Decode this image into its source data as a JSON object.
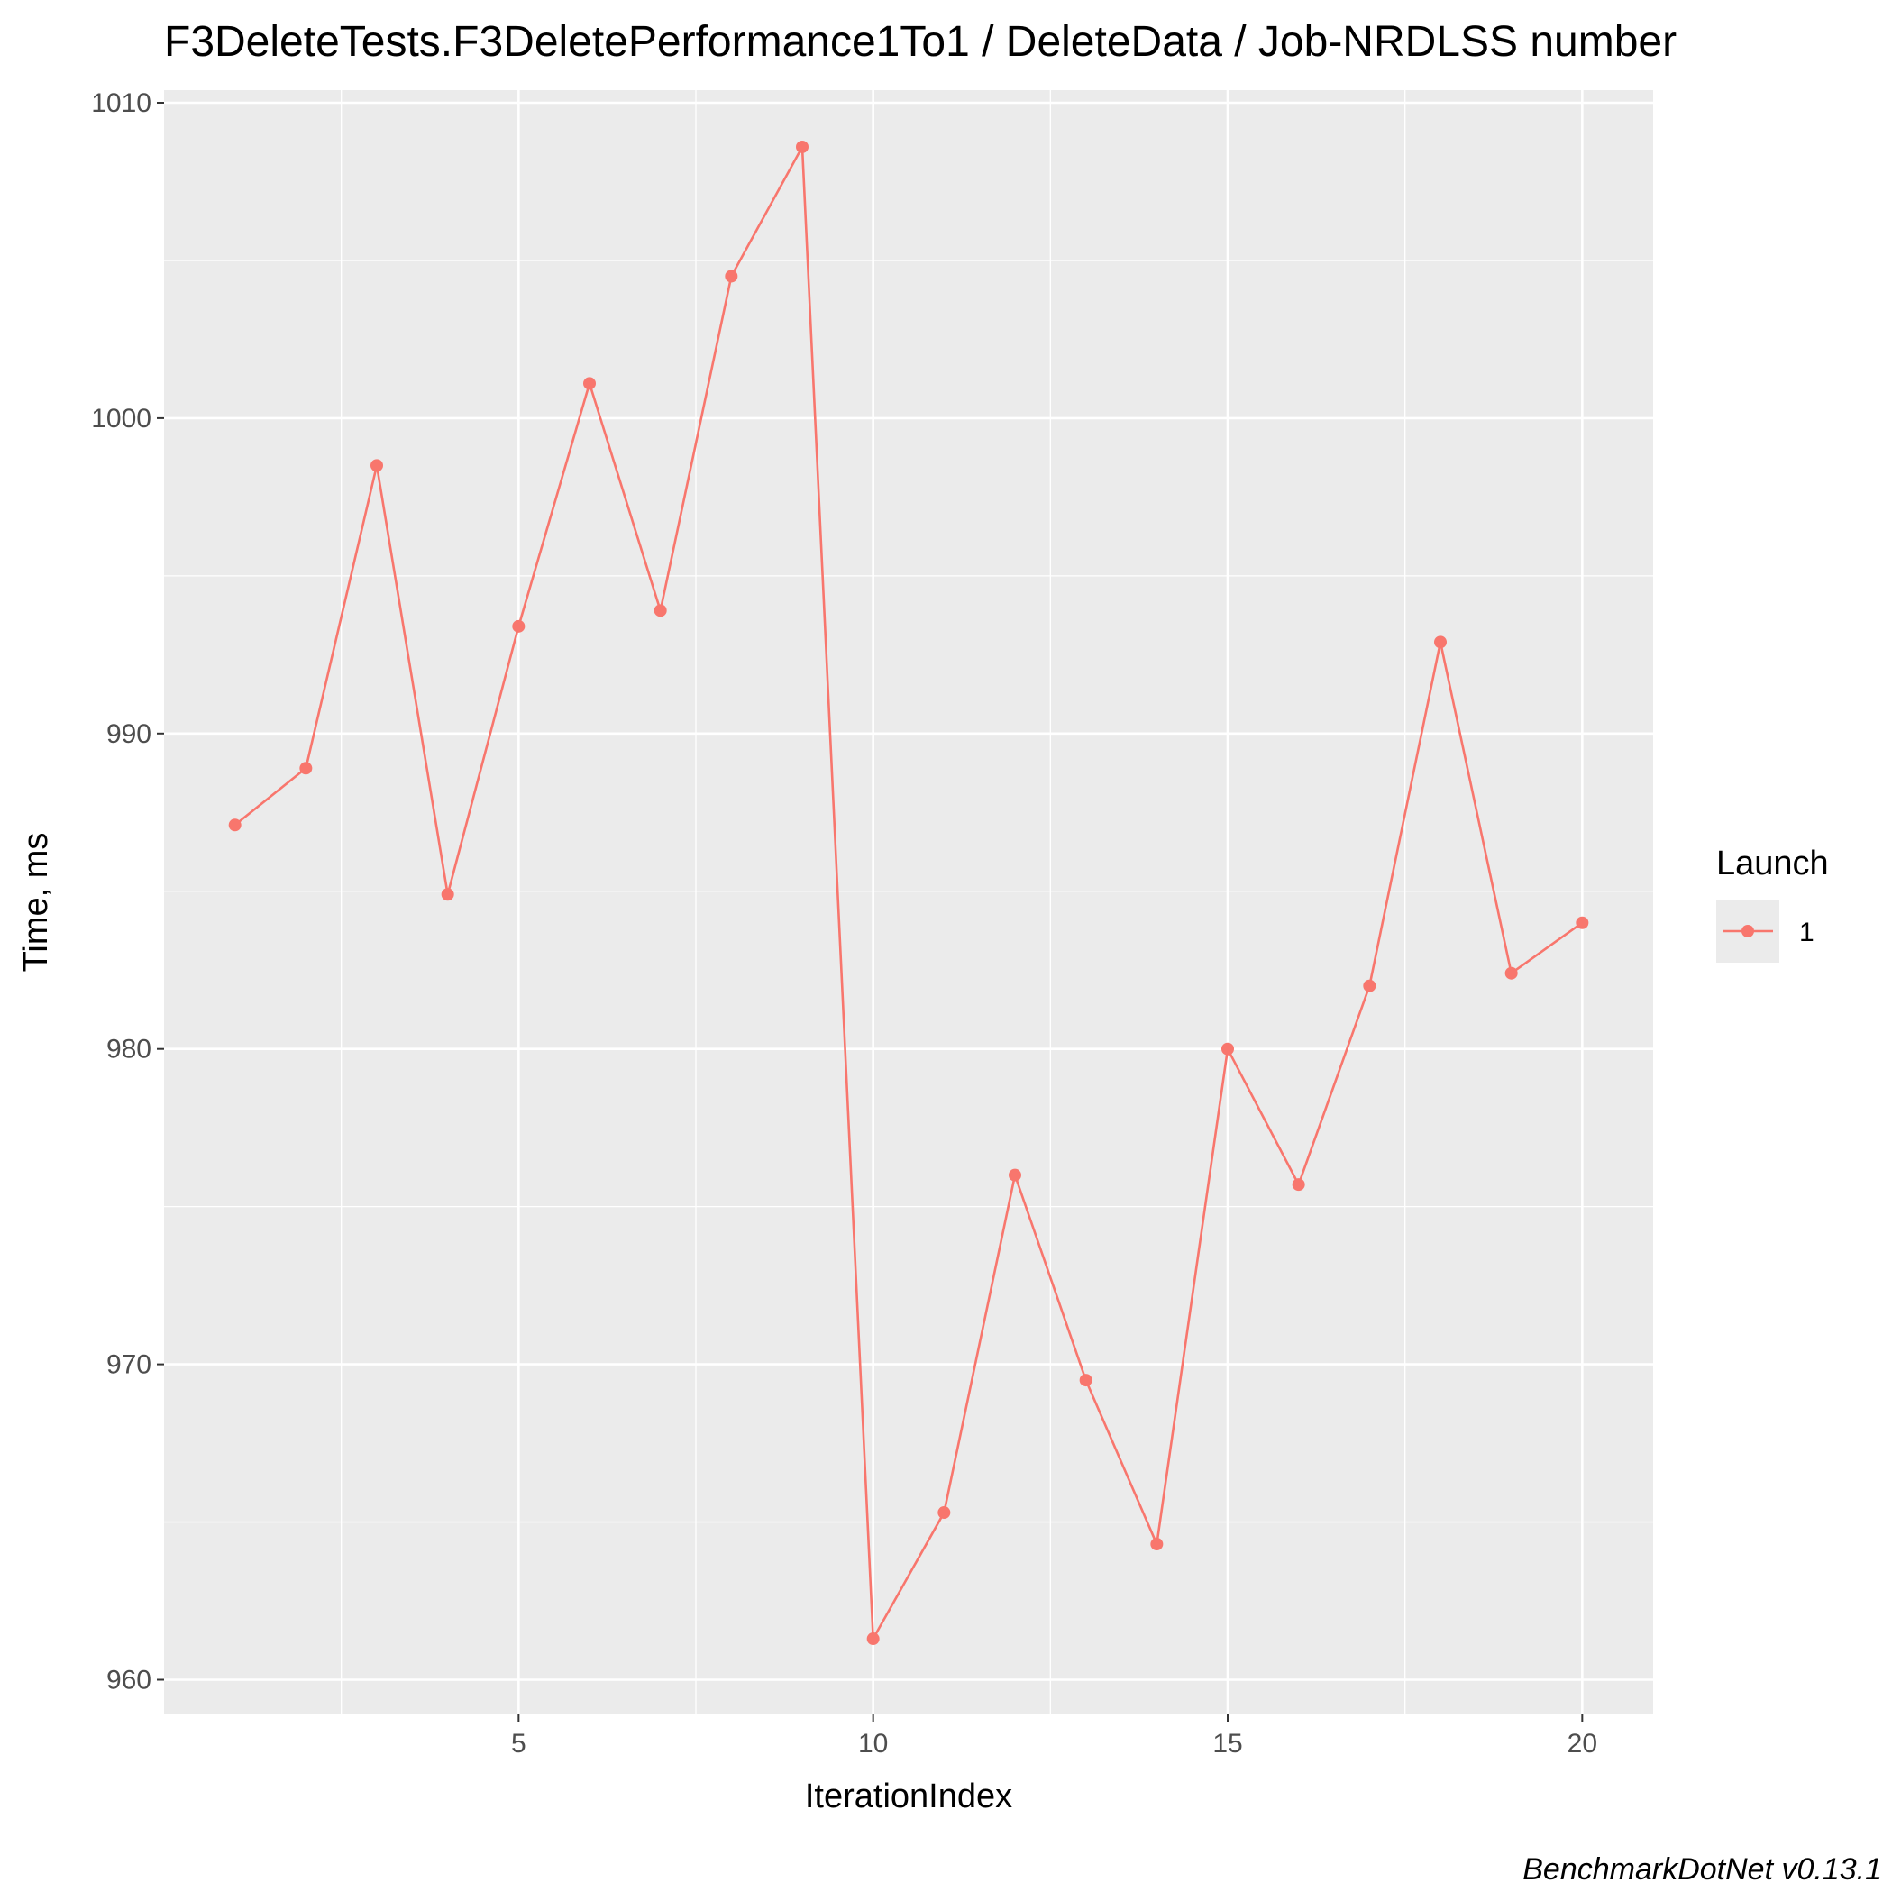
{
  "chart_data": {
    "type": "line",
    "title": "F3DeleteTests.F3DeletePerformance1To1 / DeleteData / Job-NRDLSS number",
    "xlabel": "IterationIndex",
    "ylabel": "Time, ms",
    "caption": "BenchmarkDotNet v0.13.1",
    "xlim": [
      0,
      21
    ],
    "ylim": [
      958.9,
      1010.4
    ],
    "x_ticks": [
      5,
      10,
      15,
      20
    ],
    "y_ticks": [
      960,
      970,
      980,
      990,
      1000,
      1010
    ],
    "grid": true,
    "legend": {
      "title": "Launch",
      "position": "right"
    },
    "series": [
      {
        "name": "1",
        "color": "#f8766d",
        "x": [
          1,
          2,
          3,
          4,
          5,
          6,
          7,
          8,
          9,
          10,
          11,
          12,
          13,
          14,
          15,
          16,
          17,
          18,
          19,
          20
        ],
        "values": [
          987.1,
          988.9,
          998.5,
          984.9,
          993.4,
          1001.1,
          993.9,
          1004.5,
          1008.6,
          961.3,
          965.3,
          976.0,
          969.5,
          964.3,
          980.0,
          975.7,
          982.0,
          992.9,
          982.4,
          984.0
        ]
      }
    ]
  }
}
